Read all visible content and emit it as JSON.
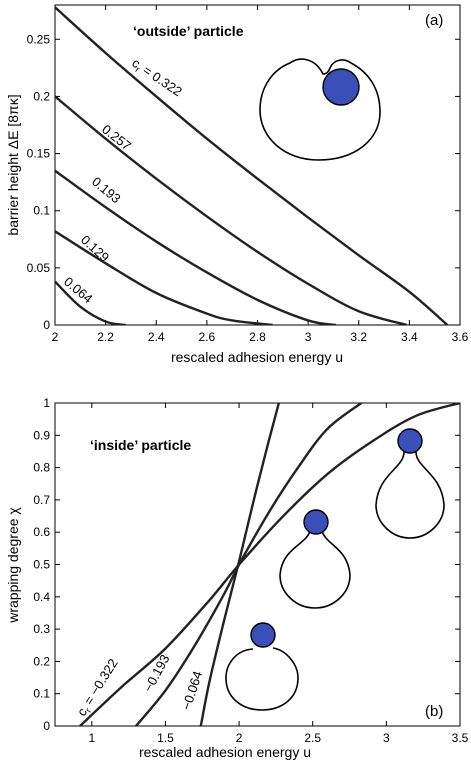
{
  "accent_color": "#3a4fb8",
  "chart_data": [
    {
      "type": "line",
      "panel_label": "(a)",
      "annotation": "‘outside’ particle",
      "xlabel": "rescaled adhesion energy u",
      "ylabel": "barrier height ΔE  [8πκ]",
      "xlim": [
        2,
        3.6
      ],
      "ylim": [
        0,
        0.28
      ],
      "xticks": [
        "2",
        "2.2",
        "2.4",
        "2.6",
        "2.8",
        "3",
        "3.2",
        "3.4",
        "3.6"
      ],
      "yticks": [
        "0",
        "0.05",
        "0.1",
        "0.15",
        "0.2",
        "0.25"
      ],
      "grid": false,
      "series": [
        {
          "name": "c = 0.322",
          "label_text": "c",
          "label_sub": "r",
          "label_rest": " = 0.322",
          "x": [
            2.0,
            2.2,
            2.4,
            2.6,
            2.8,
            3.0,
            3.2,
            3.4,
            3.55
          ],
          "y": [
            0.278,
            0.238,
            0.2,
            0.163,
            0.128,
            0.094,
            0.061,
            0.029,
            0.0
          ]
        },
        {
          "name": "0.257",
          "label_text": "0.257",
          "x": [
            2.0,
            2.2,
            2.4,
            2.6,
            2.8,
            3.0,
            3.2,
            3.39
          ],
          "y": [
            0.2,
            0.163,
            0.128,
            0.095,
            0.064,
            0.036,
            0.012,
            0.0
          ]
        },
        {
          "name": "0.193",
          "label_text": "0.193",
          "x": [
            2.0,
            2.2,
            2.4,
            2.6,
            2.8,
            3.0,
            3.11
          ],
          "y": [
            0.135,
            0.103,
            0.073,
            0.046,
            0.022,
            0.004,
            0.0
          ]
        },
        {
          "name": "0.129",
          "label_text": "0.129",
          "x": [
            2.0,
            2.2,
            2.4,
            2.6,
            2.7,
            2.86
          ],
          "y": [
            0.082,
            0.054,
            0.028,
            0.01,
            0.004,
            0.0
          ]
        },
        {
          "name": "0.064",
          "label_text": "0.064",
          "x": [
            2.0,
            2.1,
            2.2,
            2.28
          ],
          "y": [
            0.038,
            0.016,
            0.003,
            0.0
          ]
        }
      ]
    },
    {
      "type": "line",
      "panel_label": "(b)",
      "annotation": "‘inside’ particle",
      "xlabel": "rescaled adhesion energy u",
      "ylabel": "wrapping degree χ",
      "xlim": [
        0.75,
        3.5
      ],
      "ylim": [
        0,
        1
      ],
      "xticks": [
        "1",
        "1.5",
        "2",
        "2.5",
        "3",
        "3.5"
      ],
      "yticks": [
        "0",
        "0.1",
        "0.2",
        "0.3",
        "0.4",
        "0.5",
        "0.6",
        "0.7",
        "0.8",
        "0.9",
        "1"
      ],
      "grid": false,
      "series": [
        {
          "name": "c = −0.322",
          "label_text": "c",
          "label_sub": "r",
          "label_rest": " = −0.322",
          "x": [
            0.92,
            1.2,
            1.5,
            1.8,
            2.0,
            2.3,
            2.6,
            2.9,
            3.2,
            3.5
          ],
          "y": [
            0.0,
            0.12,
            0.24,
            0.39,
            0.5,
            0.65,
            0.78,
            0.88,
            0.96,
            1.0
          ]
        },
        {
          "name": "−0.193",
          "label_text": "−0.193",
          "x": [
            1.3,
            1.5,
            1.7,
            1.9,
            2.0,
            2.2,
            2.4,
            2.6,
            2.83
          ],
          "y": [
            0.0,
            0.11,
            0.25,
            0.41,
            0.5,
            0.66,
            0.8,
            0.92,
            1.0
          ]
        },
        {
          "name": "−0.064",
          "label_text": "−0.064",
          "x": [
            1.74,
            1.8,
            1.9,
            2.0,
            2.1,
            2.2,
            2.27
          ],
          "y": [
            0.0,
            0.14,
            0.33,
            0.51,
            0.7,
            0.88,
            1.0
          ]
        }
      ]
    }
  ]
}
